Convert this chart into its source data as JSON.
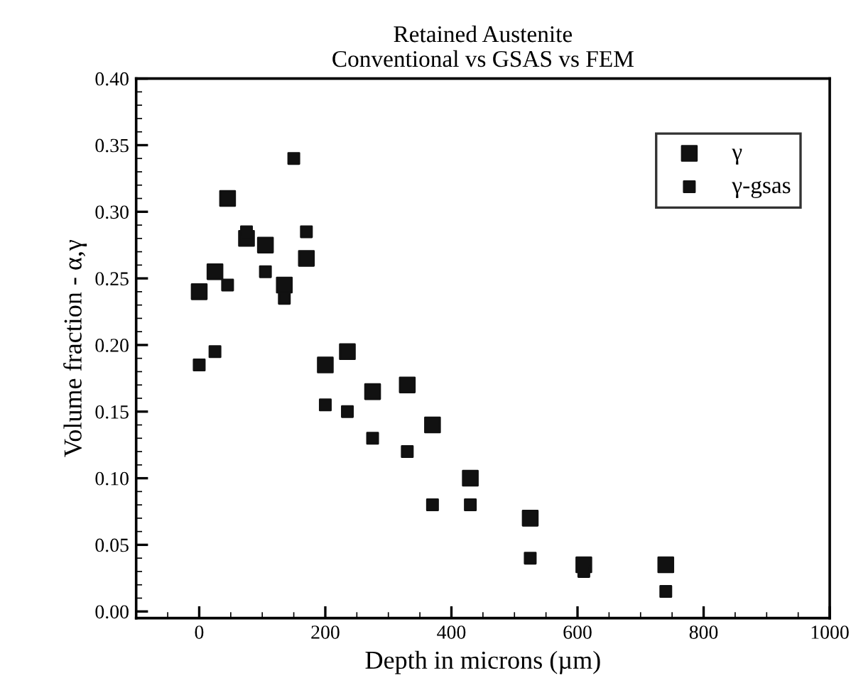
{
  "chart_data": {
    "type": "scatter",
    "title": "Retained Austenite\nConventional vs GSAS vs FEM",
    "xlabel": "Depth in microns (µm)",
    "ylabel": "Volume fraction - α,γ",
    "series": [
      {
        "name": "γ",
        "color": "#111111",
        "x": [
          0,
          25,
          45,
          75,
          105,
          135,
          170,
          200,
          235,
          275,
          330,
          370,
          430,
          525,
          610,
          740
        ],
        "values": [
          0.24,
          0.255,
          0.31,
          0.28,
          0.275,
          0.245,
          0.265,
          0.185,
          0.195,
          0.165,
          0.17,
          0.14,
          0.1,
          0.07,
          0.035,
          0.035
        ]
      },
      {
        "name": "γ-gsas",
        "color": "#111111",
        "x": [
          0,
          25,
          45,
          75,
          105,
          135,
          150,
          170,
          200,
          235,
          275,
          330,
          370,
          430,
          525,
          610,
          740
        ],
        "values": [
          0.185,
          0.195,
          0.245,
          0.285,
          0.255,
          0.235,
          0.34,
          0.285,
          0.155,
          0.15,
          0.13,
          0.12,
          0.08,
          0.08,
          0.04,
          0.03,
          0.015
        ]
      }
    ],
    "xlim": [
      -100,
      1000
    ],
    "xticks": [
      0,
      200,
      400,
      600,
      800,
      1000
    ],
    "ylim": [
      -0.005,
      0.4
    ],
    "yticks": [
      {
        "value": 0,
        "label": "0.00"
      },
      0.05,
      {
        "value": 0.1,
        "label": "0.10"
      },
      0.15,
      {
        "value": 0.2,
        "label": "0.20"
      },
      0.25,
      {
        "value": 0.3,
        "label": "0.30"
      },
      0.35,
      {
        "value": 0.4,
        "label": "0.40"
      }
    ],
    "marker": "square",
    "grid": false,
    "legend": "top right"
  }
}
